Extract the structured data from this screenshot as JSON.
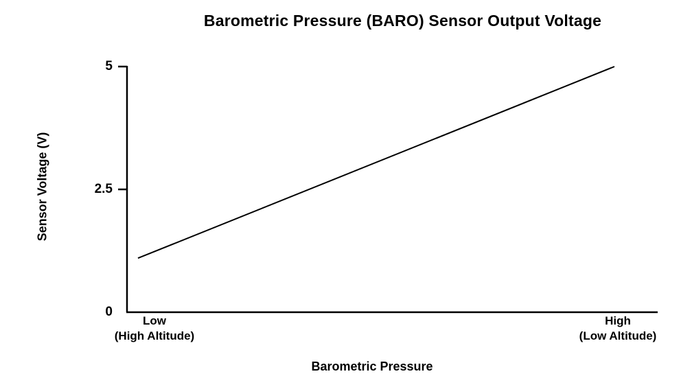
{
  "chart_data": {
    "type": "line",
    "title": "Barometric Pressure (BARO) Sensor Output Voltage",
    "xlabel": "Barometric Pressure",
    "ylabel": "Sensor Voltage (V)",
    "ylim": [
      0,
      5
    ],
    "yticks": [
      {
        "value": 0,
        "label": "0"
      },
      {
        "value": 2.5,
        "label": "2.5"
      },
      {
        "value": 5,
        "label": "5"
      }
    ],
    "x_categories": [
      {
        "label": "Low",
        "sublabel": "(High Altitude)"
      },
      {
        "label": "High",
        "sublabel": "(Low Altitude)"
      }
    ],
    "series": [
      {
        "name": "BARO sensor output voltage",
        "values": [
          1.1,
          5.0
        ]
      }
    ],
    "grid": false,
    "legend": "none",
    "line_color": "#000000",
    "background_color": "#ffffff"
  }
}
